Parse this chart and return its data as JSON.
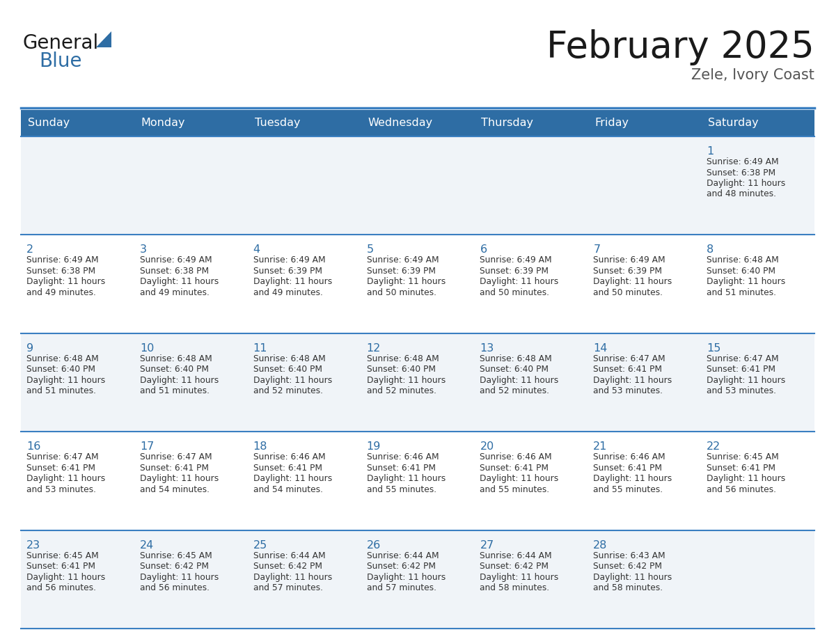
{
  "title": "February 2025",
  "subtitle": "Zele, Ivory Coast",
  "days_of_week": [
    "Sunday",
    "Monday",
    "Tuesday",
    "Wednesday",
    "Thursday",
    "Friday",
    "Saturday"
  ],
  "header_bg": "#2E6DA4",
  "header_text": "#FFFFFF",
  "cell_bg_odd": "#F0F4F8",
  "cell_bg_even": "#FFFFFF",
  "separator_color": "#3A7FC1",
  "day_num_color": "#2E6DA4",
  "cell_text_color": "#333333",
  "title_color": "#1a1a1a",
  "subtitle_color": "#555555",
  "logo_general_color": "#1a1a1a",
  "logo_blue_color": "#2E6DA4",
  "calendar_data": [
    [
      null,
      null,
      null,
      null,
      null,
      null,
      {
        "day": 1,
        "sunrise": "6:49 AM",
        "sunset": "6:38 PM",
        "daylight": "11 hours",
        "daylight2": "and 48 minutes."
      }
    ],
    [
      {
        "day": 2,
        "sunrise": "6:49 AM",
        "sunset": "6:38 PM",
        "daylight": "11 hours",
        "daylight2": "and 49 minutes."
      },
      {
        "day": 3,
        "sunrise": "6:49 AM",
        "sunset": "6:38 PM",
        "daylight": "11 hours",
        "daylight2": "and 49 minutes."
      },
      {
        "day": 4,
        "sunrise": "6:49 AM",
        "sunset": "6:39 PM",
        "daylight": "11 hours",
        "daylight2": "and 49 minutes."
      },
      {
        "day": 5,
        "sunrise": "6:49 AM",
        "sunset": "6:39 PM",
        "daylight": "11 hours",
        "daylight2": "and 50 minutes."
      },
      {
        "day": 6,
        "sunrise": "6:49 AM",
        "sunset": "6:39 PM",
        "daylight": "11 hours",
        "daylight2": "and 50 minutes."
      },
      {
        "day": 7,
        "sunrise": "6:49 AM",
        "sunset": "6:39 PM",
        "daylight": "11 hours",
        "daylight2": "and 50 minutes."
      },
      {
        "day": 8,
        "sunrise": "6:48 AM",
        "sunset": "6:40 PM",
        "daylight": "11 hours",
        "daylight2": "and 51 minutes."
      }
    ],
    [
      {
        "day": 9,
        "sunrise": "6:48 AM",
        "sunset": "6:40 PM",
        "daylight": "11 hours",
        "daylight2": "and 51 minutes."
      },
      {
        "day": 10,
        "sunrise": "6:48 AM",
        "sunset": "6:40 PM",
        "daylight": "11 hours",
        "daylight2": "and 51 minutes."
      },
      {
        "day": 11,
        "sunrise": "6:48 AM",
        "sunset": "6:40 PM",
        "daylight": "11 hours",
        "daylight2": "and 52 minutes."
      },
      {
        "day": 12,
        "sunrise": "6:48 AM",
        "sunset": "6:40 PM",
        "daylight": "11 hours",
        "daylight2": "and 52 minutes."
      },
      {
        "day": 13,
        "sunrise": "6:48 AM",
        "sunset": "6:40 PM",
        "daylight": "11 hours",
        "daylight2": "and 52 minutes."
      },
      {
        "day": 14,
        "sunrise": "6:47 AM",
        "sunset": "6:41 PM",
        "daylight": "11 hours",
        "daylight2": "and 53 minutes."
      },
      {
        "day": 15,
        "sunrise": "6:47 AM",
        "sunset": "6:41 PM",
        "daylight": "11 hours",
        "daylight2": "and 53 minutes."
      }
    ],
    [
      {
        "day": 16,
        "sunrise": "6:47 AM",
        "sunset": "6:41 PM",
        "daylight": "11 hours",
        "daylight2": "and 53 minutes."
      },
      {
        "day": 17,
        "sunrise": "6:47 AM",
        "sunset": "6:41 PM",
        "daylight": "11 hours",
        "daylight2": "and 54 minutes."
      },
      {
        "day": 18,
        "sunrise": "6:46 AM",
        "sunset": "6:41 PM",
        "daylight": "11 hours",
        "daylight2": "and 54 minutes."
      },
      {
        "day": 19,
        "sunrise": "6:46 AM",
        "sunset": "6:41 PM",
        "daylight": "11 hours",
        "daylight2": "and 55 minutes."
      },
      {
        "day": 20,
        "sunrise": "6:46 AM",
        "sunset": "6:41 PM",
        "daylight": "11 hours",
        "daylight2": "and 55 minutes."
      },
      {
        "day": 21,
        "sunrise": "6:46 AM",
        "sunset": "6:41 PM",
        "daylight": "11 hours",
        "daylight2": "and 55 minutes."
      },
      {
        "day": 22,
        "sunrise": "6:45 AM",
        "sunset": "6:41 PM",
        "daylight": "11 hours",
        "daylight2": "and 56 minutes."
      }
    ],
    [
      {
        "day": 23,
        "sunrise": "6:45 AM",
        "sunset": "6:41 PM",
        "daylight": "11 hours",
        "daylight2": "and 56 minutes."
      },
      {
        "day": 24,
        "sunrise": "6:45 AM",
        "sunset": "6:42 PM",
        "daylight": "11 hours",
        "daylight2": "and 56 minutes."
      },
      {
        "day": 25,
        "sunrise": "6:44 AM",
        "sunset": "6:42 PM",
        "daylight": "11 hours",
        "daylight2": "and 57 minutes."
      },
      {
        "day": 26,
        "sunrise": "6:44 AM",
        "sunset": "6:42 PM",
        "daylight": "11 hours",
        "daylight2": "and 57 minutes."
      },
      {
        "day": 27,
        "sunrise": "6:44 AM",
        "sunset": "6:42 PM",
        "daylight": "11 hours",
        "daylight2": "and 58 minutes."
      },
      {
        "day": 28,
        "sunrise": "6:43 AM",
        "sunset": "6:42 PM",
        "daylight": "11 hours",
        "daylight2": "and 58 minutes."
      },
      null
    ]
  ],
  "num_rows": 5,
  "num_cols": 7,
  "figure_width": 11.88,
  "figure_height": 9.18
}
